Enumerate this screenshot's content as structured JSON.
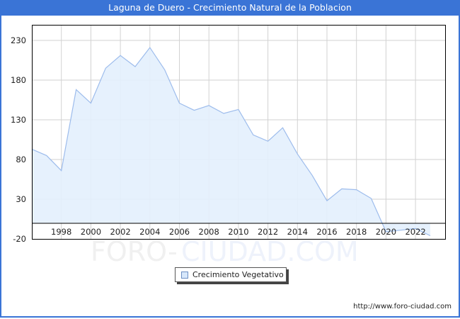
{
  "window": {
    "title": "Laguna de Duero - Crecimiento Natural de la Poblacion",
    "border_color": "#3a74d6"
  },
  "legend": {
    "label": "Crecimiento Vegetativo"
  },
  "footer": {
    "url_text": "http://www.foro-ciudad.com"
  },
  "watermark": {
    "part1": "FORO-",
    "part2": "CIUDAD.COM"
  },
  "colors": {
    "title_bar": "#3a74d6",
    "area_fill": "#e3f0fd",
    "line": "#9dbcec",
    "grid": "#d2d2d2"
  },
  "chart_data": {
    "type": "area",
    "title": "Laguna de Duero - Crecimiento Natural de la Poblacion",
    "xlabel": "",
    "ylabel": "",
    "x": [
      1996,
      1997,
      1998,
      1999,
      2000,
      2001,
      2002,
      2003,
      2004,
      2005,
      2006,
      2007,
      2008,
      2009,
      2010,
      2011,
      2012,
      2013,
      2014,
      2015,
      2016,
      2017,
      2018,
      2019,
      2020,
      2021,
      2022,
      2023
    ],
    "series": [
      {
        "name": "Crecimiento Vegetativo",
        "values": [
          93,
          85,
          66,
          168,
          151,
          195,
          211,
          197,
          221,
          193,
          151,
          142,
          148,
          138,
          143,
          111,
          103,
          120,
          87,
          60,
          28,
          43,
          42,
          31,
          -11,
          -9,
          -7,
          -16
        ]
      }
    ],
    "x_tick_labels": [
      "1998",
      "2000",
      "2002",
      "2004",
      "2006",
      "2008",
      "2010",
      "2012",
      "2014",
      "2016",
      "2018",
      "2020",
      "2022"
    ],
    "y_tick_labels": [
      "230",
      "180",
      "130",
      "80",
      "30",
      "-20"
    ],
    "y_ticks": [
      230,
      180,
      130,
      80,
      30,
      -20
    ],
    "ylim": [
      -20,
      250
    ],
    "xlim": [
      1996,
      2024
    ],
    "grid": true,
    "legend_position": "bottom-center"
  }
}
